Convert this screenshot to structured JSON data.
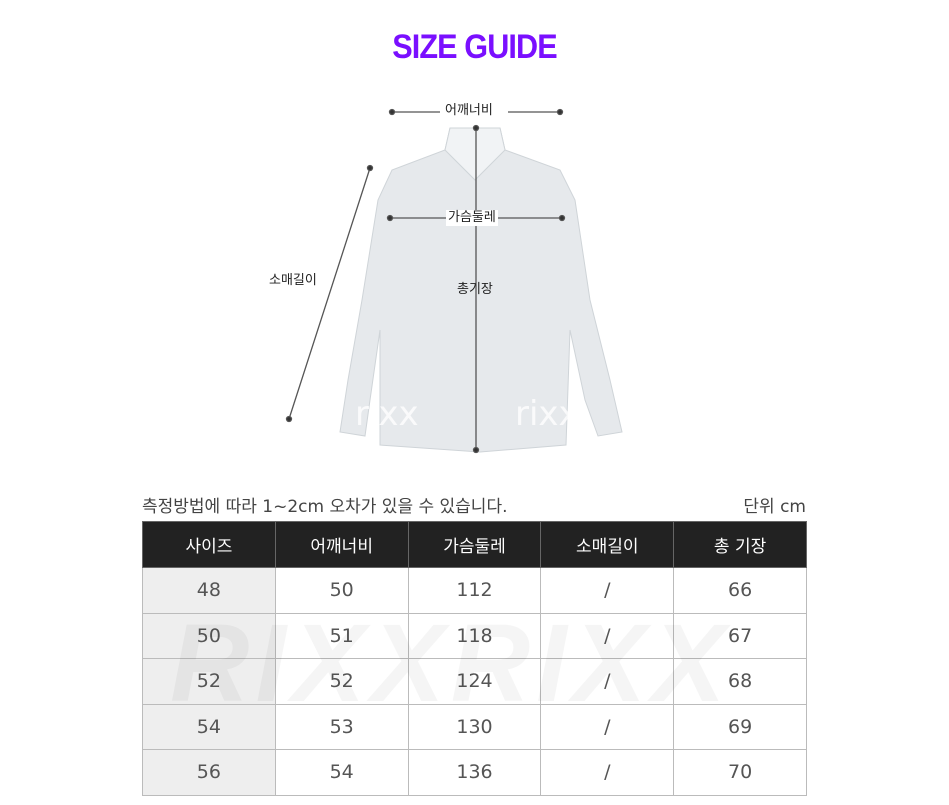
{
  "title": "SIZE GUIDE",
  "diagram": {
    "shoulder": "어깨너비",
    "chest": "가슴둘레",
    "sleeve": "소매길이",
    "length": "총기장",
    "watermark": "rixx"
  },
  "note": "측정방법에 따라 1~2cm 오차가 있을 수 있습니다.",
  "unit": "단위 cm",
  "table": {
    "headers": [
      "사이즈",
      "어깨너비",
      "가슴둘레",
      "소매길이",
      "총 기장"
    ],
    "rows": [
      [
        "48",
        "50",
        "112",
        "/",
        "66"
      ],
      [
        "50",
        "51",
        "118",
        "/",
        "67"
      ],
      [
        "52",
        "52",
        "124",
        "/",
        "68"
      ],
      [
        "54",
        "53",
        "130",
        "/",
        "69"
      ],
      [
        "56",
        "54",
        "136",
        "/",
        "70"
      ]
    ],
    "watermark": "RIXXRIXX"
  },
  "colors": {
    "title": "#7a0fff",
    "header_bg": "#222222",
    "size_col_bg": "#eeeeee"
  }
}
